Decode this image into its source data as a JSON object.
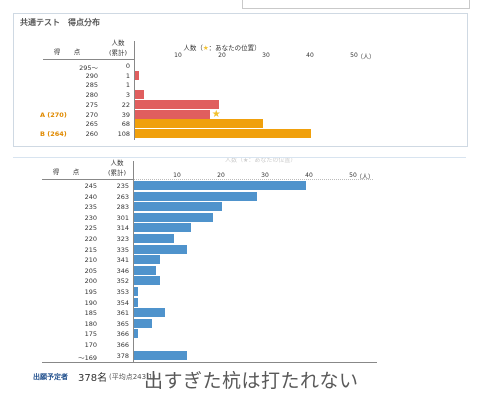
{
  "page": {
    "panel_title": "共通テスト　得点分布",
    "headers": {
      "score_top": "得",
      "score_bottom": "点",
      "count_top": "人数",
      "count_bottom": "(累計)",
      "axis_title_prefix": "人数（",
      "axis_title_star": "★",
      "axis_title_suffix": "：あなたの位置）",
      "axis_unit": "（人）"
    },
    "axis_ticks": [
      "10",
      "20",
      "30",
      "40",
      "50"
    ],
    "faint_overlap_text": "人数（★：あなたの位置）",
    "footer": {
      "label": "出願予定者",
      "value": "378名",
      "avg": "(平均点243.1)"
    },
    "watermark": "出すぎた杭は打たれない",
    "colors": {
      "red": "#e05e5e",
      "orange": "#f0a00c",
      "blue": "#4f93cc",
      "label_orange": "#e08a00",
      "star": "#f2c12e"
    }
  },
  "chart_data": [
    {
      "type": "bar",
      "orientation": "horizontal",
      "title": "共通テスト　得点分布",
      "xlabel": "人数（★：あなたの位置）",
      "xlim": [
        0,
        50
      ],
      "xticks": [
        10,
        20,
        30,
        40,
        50
      ],
      "rows": [
        {
          "score": "295〜",
          "cumulative": "0",
          "value": 0,
          "color": "none"
        },
        {
          "score": "290",
          "cumulative": "1",
          "value": 1,
          "color": "red"
        },
        {
          "score": "285",
          "cumulative": "1",
          "value": 0,
          "color": "none"
        },
        {
          "score": "280",
          "cumulative": "3",
          "value": 2,
          "color": "red"
        },
        {
          "score": "275",
          "cumulative": "22",
          "value": 19,
          "color": "red"
        },
        {
          "score": "270",
          "cumulative": "39",
          "value": 17,
          "color": "red",
          "label": "A (270)",
          "star": true
        },
        {
          "score": "265",
          "cumulative": "68",
          "value": 29,
          "color": "orange"
        },
        {
          "score": "260",
          "cumulative": "108",
          "value": 40,
          "color": "orange",
          "label": "B (264)"
        }
      ]
    },
    {
      "type": "bar",
      "orientation": "horizontal",
      "xlim": [
        0,
        50
      ],
      "xticks": [
        10,
        20,
        30,
        40,
        50
      ],
      "rows": [
        {
          "score": "245",
          "cumulative": "235",
          "value": 39
        },
        {
          "score": "240",
          "cumulative": "263",
          "value": 28
        },
        {
          "score": "235",
          "cumulative": "283",
          "value": 20
        },
        {
          "score": "230",
          "cumulative": "301",
          "value": 18
        },
        {
          "score": "225",
          "cumulative": "314",
          "value": 13
        },
        {
          "score": "220",
          "cumulative": "323",
          "value": 9
        },
        {
          "score": "215",
          "cumulative": "335",
          "value": 12
        },
        {
          "score": "210",
          "cumulative": "341",
          "value": 6
        },
        {
          "score": "205",
          "cumulative": "346",
          "value": 5
        },
        {
          "score": "200",
          "cumulative": "352",
          "value": 6
        },
        {
          "score": "195",
          "cumulative": "353",
          "value": 1
        },
        {
          "score": "190",
          "cumulative": "354",
          "value": 1
        },
        {
          "score": "185",
          "cumulative": "361",
          "value": 7
        },
        {
          "score": "180",
          "cumulative": "365",
          "value": 4
        },
        {
          "score": "175",
          "cumulative": "366",
          "value": 1
        },
        {
          "score": "170",
          "cumulative": "366",
          "value": 0
        },
        {
          "score": "〜169",
          "cumulative": "378",
          "value": 12
        }
      ]
    }
  ]
}
